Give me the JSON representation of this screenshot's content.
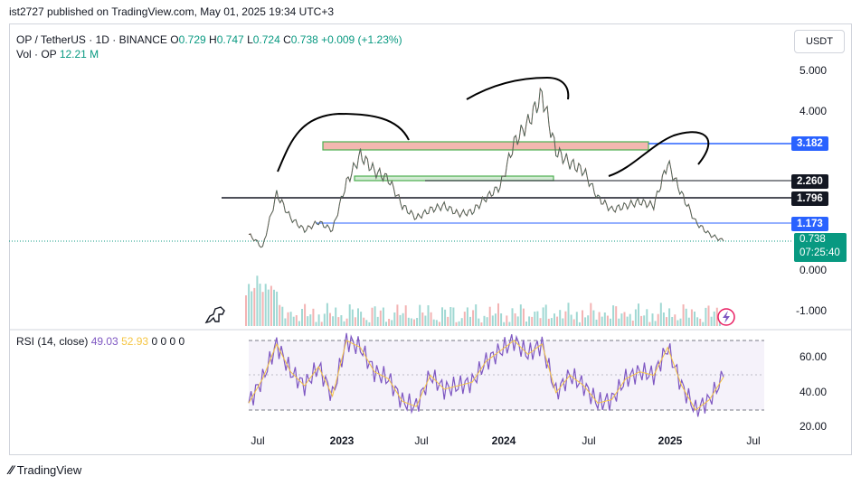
{
  "header": {
    "text": "ist2727 published on TradingView.com, May 01, 2025 19:34 UTC+3"
  },
  "legend": {
    "symbol": "OP / TetherUS · 1D · BINANCE",
    "open_label": "O",
    "open": "0.729",
    "high_label": "H",
    "high": "0.747",
    "low_label": "L",
    "low": "0.724",
    "close_label": "C",
    "close": "0.738",
    "change": "+0.009 (+1.23%)",
    "volume_label": "Vol · OP",
    "volume": "12.21 M"
  },
  "currency_button": "USDT",
  "price_axis": [
    "5.000",
    "4.000",
    "0.000",
    "-1.000"
  ],
  "price_tags": [
    {
      "label": "3.182",
      "value": 3.182,
      "color": "#2962ff"
    },
    {
      "label": "2.260",
      "value": 2.26,
      "color": "#131722"
    },
    {
      "label": "1.796",
      "value": 1.796,
      "color": "#131722"
    },
    {
      "label": "1.173",
      "value": 1.173,
      "color": "#2962ff"
    }
  ],
  "current_price": {
    "price": "0.738",
    "countdown": "07:25:40"
  },
  "rsi": {
    "label": "RSI (14, close)",
    "value": "49.03",
    "ma_value": "52.93",
    "extra": "0 0 0 0",
    "axis": [
      "60.00",
      "40.00",
      "20.00"
    ],
    "upper_band": 70,
    "lower_band": 30
  },
  "time_axis": [
    "Jul",
    "2023",
    "Jul",
    "2024",
    "Jul",
    "2025",
    "Jul"
  ],
  "footer": {
    "brand": "TradingView"
  },
  "chart_data": {
    "type": "line",
    "title": "",
    "x": [
      "2022-06",
      "2022-07",
      "2022-08",
      "2022-09",
      "2022-10",
      "2022-11",
      "2022-12",
      "2023-01",
      "2023-02",
      "2023-03",
      "2023-04",
      "2023-05",
      "2023-06",
      "2023-07",
      "2023-08",
      "2023-09",
      "2023-10",
      "2023-11",
      "2023-12",
      "2024-01",
      "2024-02",
      "2024-03",
      "2024-04",
      "2024-05",
      "2024-06",
      "2024-07",
      "2024-08",
      "2024-09",
      "2024-10",
      "2024-11",
      "2024-12",
      "2025-01",
      "2025-02",
      "2025-03",
      "2025-04"
    ],
    "series": [
      {
        "name": "OP / TetherUS",
        "values": [
          0.9,
          0.6,
          1.9,
          1.3,
          1.0,
          1.2,
          1.0,
          2.2,
          2.9,
          2.5,
          2.3,
          1.6,
          1.3,
          1.5,
          1.6,
          1.4,
          1.45,
          1.8,
          2.1,
          3.2,
          3.7,
          4.4,
          3.0,
          2.7,
          2.5,
          1.8,
          1.5,
          1.6,
          1.7,
          1.6,
          2.7,
          1.9,
          1.2,
          0.9,
          0.74
        ]
      },
      {
        "name": "RSI (14, close)",
        "values": [
          34,
          48,
          68,
          52,
          44,
          55,
          38,
          70,
          66,
          52,
          48,
          35,
          32,
          50,
          42,
          44,
          46,
          58,
          64,
          70,
          62,
          68,
          40,
          50,
          44,
          34,
          36,
          48,
          52,
          50,
          66,
          44,
          30,
          36,
          49
        ]
      }
    ],
    "levels": [
      {
        "label": "3.182",
        "value": 3.182
      },
      {
        "label": "2.260",
        "value": 2.26
      },
      {
        "label": "1.796",
        "value": 1.796
      },
      {
        "label": "1.173",
        "value": 1.173
      }
    ],
    "grid": false,
    "legend_position": "top-left"
  }
}
